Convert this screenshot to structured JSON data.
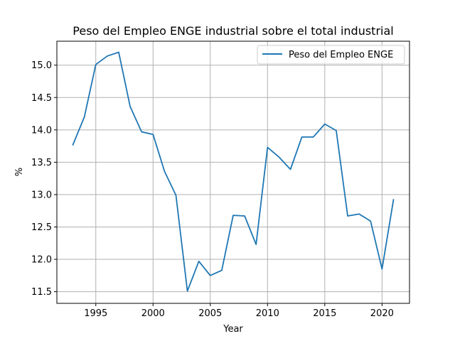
{
  "chart_data": {
    "type": "line",
    "title": "Peso del Empleo ENGE industrial sobre el total industrial",
    "xlabel": "Year",
    "ylabel": "%",
    "xlim": [
      1991.6,
      2022.4
    ],
    "ylim": [
      11.32,
      15.37
    ],
    "x_ticks": [
      1995,
      2000,
      2005,
      2010,
      2015,
      2020
    ],
    "y_ticks": [
      11.5,
      12.0,
      12.5,
      13.0,
      13.5,
      14.0,
      14.5,
      15.0
    ],
    "grid": true,
    "legend_position": "upper right",
    "series": [
      {
        "name": "Peso del Empleo ENGE",
        "color": "#1f77b4",
        "x": [
          1993,
          1994,
          1995,
          1996,
          1997,
          1998,
          1999,
          2000,
          2001,
          2002,
          2003,
          2004,
          2005,
          2006,
          2007,
          2008,
          2009,
          2010,
          2011,
          2012,
          2013,
          2014,
          2015,
          2016,
          2017,
          2018,
          2019,
          2020,
          2021
        ],
        "values": [
          13.77,
          14.2,
          15.01,
          15.14,
          15.2,
          14.36,
          13.97,
          13.93,
          13.36,
          12.99,
          11.51,
          11.97,
          11.75,
          11.83,
          12.68,
          12.67,
          12.23,
          13.73,
          13.58,
          13.39,
          13.89,
          13.89,
          14.09,
          13.99,
          12.67,
          12.7,
          12.59,
          11.85,
          12.92
        ]
      }
    ]
  }
}
